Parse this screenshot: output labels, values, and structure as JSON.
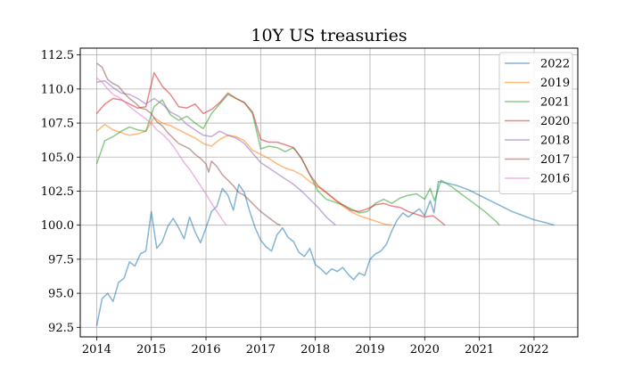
{
  "chart_data": {
    "type": "line",
    "title": "10Y US treasuries",
    "xlabel": "",
    "ylabel": "",
    "xlim": [
      2013.7,
      2022.8
    ],
    "ylim": [
      91.8,
      113.0
    ],
    "x_ticks": [
      2014,
      2015,
      2016,
      2017,
      2018,
      2019,
      2020,
      2021,
      2022
    ],
    "x_tick_labels": [
      "2014",
      "2015",
      "2016",
      "2017",
      "2018",
      "2019",
      "2020",
      "2021",
      "2022"
    ],
    "y_ticks": [
      92.5,
      95.0,
      97.5,
      100.0,
      102.5,
      105.0,
      107.5,
      110.0,
      112.5
    ],
    "y_tick_labels": [
      "92.5",
      "95.0",
      "97.5",
      "100.0",
      "102.5",
      "105.0",
      "107.5",
      "110.0",
      "112.5"
    ],
    "grid": true,
    "legend_position": "top-right",
    "series": [
      {
        "name": "2022",
        "color": "#1f77b4",
        "x": [
          2014.0,
          2014.1,
          2014.2,
          2014.3,
          2014.4,
          2014.5,
          2014.6,
          2014.7,
          2014.8,
          2014.9,
          2015.0,
          2015.1,
          2015.2,
          2015.3,
          2015.4,
          2015.5,
          2015.6,
          2015.7,
          2015.8,
          2015.9,
          2016.0,
          2016.1,
          2016.2,
          2016.3,
          2016.4,
          2016.5,
          2016.6,
          2016.7,
          2016.8,
          2016.9,
          2017.0,
          2017.1,
          2017.2,
          2017.3,
          2017.4,
          2017.5,
          2017.6,
          2017.7,
          2017.8,
          2017.9,
          2018.0,
          2018.1,
          2018.2,
          2018.3,
          2018.4,
          2018.5,
          2018.6,
          2018.7,
          2018.8,
          2018.9,
          2019.0,
          2019.1,
          2019.2,
          2019.3,
          2019.4,
          2019.5,
          2019.6,
          2019.7,
          2019.8,
          2019.9,
          2020.0,
          2020.1,
          2020.17,
          2020.25,
          2020.4,
          2020.6,
          2020.8,
          2021.0,
          2021.2,
          2021.4,
          2021.6,
          2021.8,
          2022.0,
          2022.2,
          2022.37
        ],
        "values": [
          92.6,
          94.6,
          95.0,
          94.4,
          95.8,
          96.1,
          97.3,
          97.0,
          97.9,
          98.1,
          101.0,
          98.3,
          98.8,
          99.9,
          100.5,
          99.8,
          99.0,
          100.6,
          99.5,
          98.7,
          99.8,
          101.0,
          101.4,
          102.7,
          102.2,
          101.1,
          103.0,
          102.4,
          101.0,
          99.8,
          98.9,
          98.4,
          98.1,
          99.3,
          99.8,
          99.1,
          98.8,
          98.0,
          97.7,
          98.3,
          97.1,
          96.8,
          96.4,
          96.8,
          96.6,
          96.9,
          96.4,
          96.0,
          96.5,
          96.3,
          97.5,
          97.9,
          98.1,
          98.6,
          99.6,
          100.4,
          100.9,
          100.6,
          100.9,
          101.2,
          100.7,
          101.8,
          100.9,
          103.2,
          103.1,
          102.9,
          102.6,
          102.2,
          101.8,
          101.4,
          101.0,
          100.7,
          100.4,
          100.2,
          100.0
        ]
      },
      {
        "name": "2019",
        "color": "#ff7f0e",
        "x": [
          2014.0,
          2014.15,
          2014.3,
          2014.45,
          2014.6,
          2014.75,
          2014.9,
          2015.05,
          2015.2,
          2015.35,
          2015.5,
          2015.65,
          2015.8,
          2015.95,
          2016.1,
          2016.25,
          2016.4,
          2016.55,
          2016.7,
          2016.85,
          2017.0,
          2017.15,
          2017.3,
          2017.45,
          2017.6,
          2017.75,
          2017.9,
          2018.05,
          2018.2,
          2018.35,
          2018.5,
          2018.65,
          2018.8,
          2018.95,
          2019.1,
          2019.25,
          2019.4
        ],
        "values": [
          106.9,
          107.4,
          107.0,
          106.8,
          106.6,
          106.7,
          106.9,
          107.9,
          107.5,
          107.3,
          107.0,
          106.7,
          106.4,
          106.0,
          105.8,
          106.3,
          106.6,
          106.5,
          106.2,
          105.5,
          105.2,
          104.9,
          104.5,
          104.2,
          104.0,
          103.7,
          103.2,
          102.8,
          102.4,
          101.9,
          101.4,
          101.0,
          100.7,
          100.5,
          100.3,
          100.1,
          100.0
        ]
      },
      {
        "name": "2021",
        "color": "#2ca02c",
        "x": [
          2014.0,
          2014.15,
          2014.3,
          2014.45,
          2014.6,
          2014.75,
          2014.9,
          2015.05,
          2015.2,
          2015.35,
          2015.5,
          2015.65,
          2015.8,
          2015.95,
          2016.1,
          2016.25,
          2016.4,
          2016.55,
          2016.7,
          2016.85,
          2017.0,
          2017.15,
          2017.3,
          2017.45,
          2017.6,
          2017.75,
          2017.9,
          2018.05,
          2018.2,
          2018.35,
          2018.5,
          2018.65,
          2018.8,
          2018.95,
          2019.1,
          2019.25,
          2019.4,
          2019.55,
          2019.7,
          2019.85,
          2020.0,
          2020.1,
          2020.18,
          2020.3,
          2020.5,
          2020.7,
          2020.9,
          2021.1,
          2021.3,
          2021.37
        ],
        "values": [
          104.5,
          106.2,
          106.5,
          106.9,
          107.2,
          107.0,
          106.9,
          108.7,
          109.2,
          108.1,
          107.7,
          108.0,
          107.5,
          107.1,
          108.2,
          108.9,
          109.6,
          109.3,
          109.0,
          108.2,
          105.6,
          105.8,
          105.7,
          105.4,
          105.7,
          104.9,
          103.7,
          102.5,
          101.9,
          101.7,
          101.5,
          101.2,
          100.9,
          101.0,
          101.6,
          101.9,
          101.6,
          102.0,
          102.2,
          102.3,
          101.9,
          102.7,
          101.8,
          103.3,
          102.8,
          102.2,
          101.6,
          101.0,
          100.3,
          100.0
        ]
      },
      {
        "name": "2020",
        "color": "#d62728",
        "x": [
          2014.0,
          2014.15,
          2014.3,
          2014.45,
          2014.6,
          2014.75,
          2014.9,
          2015.05,
          2015.2,
          2015.35,
          2015.5,
          2015.65,
          2015.8,
          2015.95,
          2016.1,
          2016.25,
          2016.4,
          2016.55,
          2016.7,
          2016.85,
          2017.0,
          2017.15,
          2017.3,
          2017.45,
          2017.6,
          2017.75,
          2017.9,
          2018.05,
          2018.2,
          2018.35,
          2018.5,
          2018.65,
          2018.8,
          2018.95,
          2019.1,
          2019.25,
          2019.4,
          2019.55,
          2019.7,
          2019.85,
          2020.0,
          2020.15,
          2020.25,
          2020.37
        ],
        "values": [
          108.2,
          108.9,
          109.3,
          109.2,
          108.9,
          108.6,
          108.7,
          111.2,
          110.2,
          109.6,
          108.7,
          108.6,
          108.9,
          108.2,
          108.5,
          109.0,
          109.7,
          109.3,
          109.0,
          108.3,
          106.3,
          106.1,
          106.1,
          105.9,
          105.7,
          104.9,
          103.7,
          102.9,
          102.4,
          101.9,
          101.5,
          101.1,
          101.0,
          101.2,
          101.5,
          101.6,
          101.4,
          101.3,
          101.0,
          100.8,
          100.6,
          100.7,
          100.4,
          100.0
        ]
      },
      {
        "name": "2018",
        "color": "#9467bd",
        "x": [
          2014.0,
          2014.15,
          2014.3,
          2014.45,
          2014.6,
          2014.75,
          2014.9,
          2015.05,
          2015.2,
          2015.35,
          2015.5,
          2015.65,
          2015.8,
          2015.95,
          2016.1,
          2016.25,
          2016.4,
          2016.55,
          2016.7,
          2016.85,
          2017.0,
          2017.15,
          2017.3,
          2017.45,
          2017.6,
          2017.75,
          2017.9,
          2018.05,
          2018.2,
          2018.37
        ],
        "values": [
          110.5,
          110.6,
          110.1,
          109.7,
          109.6,
          109.3,
          108.9,
          109.3,
          108.9,
          108.3,
          108.0,
          107.4,
          107.0,
          106.6,
          106.5,
          106.9,
          106.6,
          106.4,
          106.0,
          105.3,
          104.6,
          104.2,
          103.8,
          103.4,
          103.0,
          102.5,
          101.9,
          101.3,
          100.6,
          100.0
        ]
      },
      {
        "name": "2017",
        "color": "#8c564b",
        "x": [
          2014.0,
          2014.1,
          2014.2,
          2014.3,
          2014.4,
          2014.5,
          2014.6,
          2014.7,
          2014.8,
          2014.9,
          2015.0,
          2015.1,
          2015.2,
          2015.3,
          2015.4,
          2015.5,
          2015.6,
          2015.7,
          2015.8,
          2015.9,
          2016.0,
          2016.05,
          2016.1,
          2016.2,
          2016.3,
          2016.4,
          2016.5,
          2016.6,
          2016.7,
          2016.8,
          2016.9,
          2017.0,
          2017.1,
          2017.2,
          2017.3,
          2017.37
        ],
        "values": [
          111.9,
          111.6,
          110.7,
          110.4,
          110.2,
          109.7,
          109.3,
          109.0,
          108.6,
          108.5,
          108.2,
          107.6,
          107.3,
          106.8,
          106.4,
          106.0,
          105.8,
          105.6,
          105.2,
          104.9,
          104.5,
          103.9,
          104.7,
          104.3,
          103.7,
          103.3,
          102.9,
          102.4,
          102.2,
          101.8,
          101.4,
          101.0,
          100.7,
          100.4,
          100.1,
          100.0
        ]
      },
      {
        "name": "2016",
        "color": "#e377c2",
        "x": [
          2014.0,
          2014.1,
          2014.2,
          2014.3,
          2014.4,
          2014.5,
          2014.6,
          2014.7,
          2014.8,
          2014.9,
          2015.0,
          2015.1,
          2015.2,
          2015.3,
          2015.4,
          2015.5,
          2015.6,
          2015.7,
          2015.8,
          2015.9,
          2016.0,
          2016.1,
          2016.2,
          2016.3,
          2016.37
        ],
        "values": [
          110.8,
          110.5,
          110.0,
          109.6,
          109.4,
          109.1,
          108.7,
          108.4,
          108.1,
          107.8,
          107.5,
          107.0,
          106.7,
          106.3,
          105.8,
          105.2,
          104.6,
          104.1,
          103.5,
          102.9,
          102.3,
          101.6,
          101.0,
          100.4,
          100.0
        ]
      }
    ]
  }
}
